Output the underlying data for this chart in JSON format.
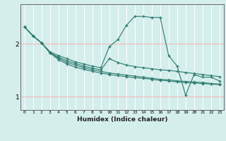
{
  "xlabel": "Humidex (Indice chaleur)",
  "bg_color": "#d4eeec",
  "line_color": "#2d7a6e",
  "grid_color_v": "#ffffff",
  "grid_color_h": "#f0b8b8",
  "xlim": [
    -0.5,
    23.5
  ],
  "ylim": [
    0.75,
    2.75
  ],
  "yticks": [
    1,
    2
  ],
  "xticks": [
    0,
    1,
    2,
    3,
    4,
    5,
    6,
    7,
    8,
    9,
    10,
    11,
    12,
    13,
    14,
    15,
    16,
    17,
    18,
    19,
    20,
    21,
    22,
    23
  ],
  "series": [
    [
      2.32,
      2.15,
      2.02,
      1.85,
      1.78,
      1.72,
      1.66,
      1.62,
      1.58,
      1.55,
      1.95,
      2.08,
      2.35,
      2.52,
      2.52,
      2.5,
      2.5,
      1.78,
      1.58,
      1.03,
      1.42,
      1.37,
      1.37,
      1.3
    ],
    [
      2.32,
      2.15,
      2.02,
      1.83,
      1.75,
      1.68,
      1.63,
      1.58,
      1.54,
      1.51,
      1.72,
      1.65,
      1.6,
      1.57,
      1.55,
      1.53,
      1.51,
      1.5,
      1.48,
      1.46,
      1.44,
      1.42,
      1.4,
      1.38
    ],
    [
      2.32,
      2.15,
      2.02,
      1.83,
      1.73,
      1.65,
      1.6,
      1.55,
      1.51,
      1.48,
      1.45,
      1.43,
      1.41,
      1.39,
      1.37,
      1.35,
      1.33,
      1.32,
      1.3,
      1.29,
      1.28,
      1.27,
      1.25,
      1.24
    ],
    [
      2.32,
      2.15,
      2.02,
      1.83,
      1.7,
      1.62,
      1.56,
      1.52,
      1.48,
      1.45,
      1.42,
      1.4,
      1.38,
      1.36,
      1.35,
      1.33,
      1.31,
      1.3,
      1.28,
      1.27,
      1.26,
      1.25,
      1.24,
      1.23
    ]
  ]
}
